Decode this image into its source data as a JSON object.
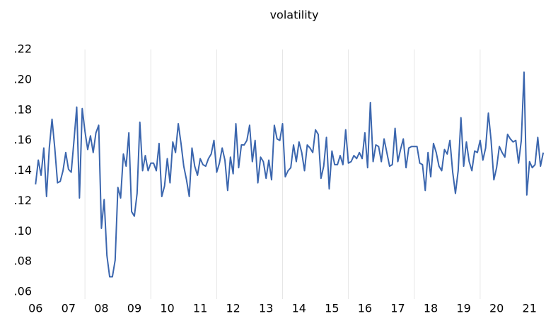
{
  "chart_data": {
    "type": "line",
    "title": "volatility",
    "color": "#3b66ae",
    "x": [
      2006.5,
      2006.583,
      2006.667,
      2006.75,
      2006.833,
      2006.917,
      2007.0,
      2007.083,
      2007.167,
      2007.25,
      2007.333,
      2007.417,
      2007.5,
      2007.583,
      2007.667,
      2007.75,
      2007.833,
      2007.917,
      2008.0,
      2008.083,
      2008.167,
      2008.25,
      2008.333,
      2008.417,
      2008.5,
      2008.583,
      2008.667,
      2008.75,
      2008.833,
      2008.917,
      2009.0,
      2009.083,
      2009.167,
      2009.25,
      2009.333,
      2009.417,
      2009.5,
      2009.583,
      2009.667,
      2009.75,
      2009.833,
      2009.917,
      2010.0,
      2010.083,
      2010.167,
      2010.25,
      2010.333,
      2010.417,
      2010.5,
      2010.583,
      2010.667,
      2010.75,
      2010.833,
      2010.917,
      2011.0,
      2011.083,
      2011.167,
      2011.25,
      2011.333,
      2011.417,
      2011.5,
      2011.583,
      2011.667,
      2011.75,
      2011.833,
      2011.917,
      2012.0,
      2012.083,
      2012.167,
      2012.25,
      2012.333,
      2012.417,
      2012.5,
      2012.583,
      2012.667,
      2012.75,
      2012.833,
      2012.917,
      2013.0,
      2013.083,
      2013.167,
      2013.25,
      2013.333,
      2013.417,
      2013.5,
      2013.583,
      2013.667,
      2013.75,
      2013.833,
      2013.917,
      2014.0,
      2014.083,
      2014.167,
      2014.25,
      2014.333,
      2014.417,
      2014.5,
      2014.583,
      2014.667,
      2014.75,
      2014.833,
      2014.917,
      2015.0,
      2015.083,
      2015.167,
      2015.25,
      2015.333,
      2015.417,
      2015.5,
      2015.583,
      2015.667,
      2015.75,
      2015.833,
      2015.917,
      2016.0,
      2016.083,
      2016.167,
      2016.25,
      2016.333,
      2016.417,
      2016.5,
      2016.583,
      2016.667,
      2016.75,
      2016.833,
      2016.917,
      2017.0,
      2017.083,
      2017.167,
      2017.25,
      2017.333,
      2017.417,
      2017.5,
      2017.583,
      2017.667,
      2017.75,
      2017.833,
      2017.917,
      2018.0,
      2018.083,
      2018.167,
      2018.25,
      2018.333,
      2018.417,
      2018.5,
      2018.583,
      2018.667,
      2018.75,
      2018.833,
      2018.917,
      2019.0,
      2019.083,
      2019.167,
      2019.25,
      2019.333,
      2019.417,
      2019.5,
      2019.583,
      2019.667,
      2019.75,
      2019.833,
      2019.917,
      2020.0,
      2020.083,
      2020.167,
      2020.25,
      2020.333,
      2020.417,
      2020.5,
      2020.583,
      2020.667,
      2020.75,
      2020.833,
      2020.917,
      2021.0,
      2021.083,
      2021.167,
      2021.25,
      2021.333,
      2021.417,
      2021.5,
      2021.583,
      2021.667,
      2021.75,
      2021.833,
      2021.917
    ],
    "values": [
      0.131,
      0.147,
      0.137,
      0.155,
      0.123,
      0.155,
      0.174,
      0.155,
      0.132,
      0.133,
      0.14,
      0.152,
      0.141,
      0.139,
      0.16,
      0.182,
      0.122,
      0.181,
      0.166,
      0.154,
      0.163,
      0.152,
      0.165,
      0.17,
      0.102,
      0.121,
      0.084,
      0.07,
      0.07,
      0.081,
      0.129,
      0.122,
      0.151,
      0.143,
      0.165,
      0.113,
      0.11,
      0.125,
      0.172,
      0.14,
      0.15,
      0.14,
      0.145,
      0.145,
      0.14,
      0.158,
      0.123,
      0.13,
      0.148,
      0.132,
      0.159,
      0.152,
      0.171,
      0.158,
      0.143,
      0.134,
      0.123,
      0.155,
      0.143,
      0.137,
      0.148,
      0.144,
      0.143,
      0.148,
      0.151,
      0.16,
      0.139,
      0.145,
      0.155,
      0.147,
      0.127,
      0.149,
      0.138,
      0.171,
      0.142,
      0.157,
      0.157,
      0.16,
      0.17,
      0.146,
      0.16,
      0.132,
      0.149,
      0.146,
      0.135,
      0.147,
      0.134,
      0.17,
      0.161,
      0.16,
      0.171,
      0.136,
      0.14,
      0.142,
      0.157,
      0.146,
      0.159,
      0.152,
      0.14,
      0.157,
      0.155,
      0.152,
      0.167,
      0.164,
      0.135,
      0.143,
      0.162,
      0.128,
      0.153,
      0.144,
      0.144,
      0.15,
      0.144,
      0.167,
      0.145,
      0.146,
      0.15,
      0.148,
      0.152,
      0.148,
      0.165,
      0.142,
      0.185,
      0.146,
      0.157,
      0.156,
      0.146,
      0.161,
      0.152,
      0.143,
      0.144,
      0.168,
      0.146,
      0.154,
      0.161,
      0.142,
      0.155,
      0.156,
      0.156,
      0.156,
      0.145,
      0.144,
      0.127,
      0.152,
      0.136,
      0.158,
      0.152,
      0.143,
      0.14,
      0.154,
      0.151,
      0.16,
      0.139,
      0.125,
      0.14,
      0.175,
      0.143,
      0.159,
      0.146,
      0.14,
      0.153,
      0.152,
      0.16,
      0.147,
      0.155,
      0.178,
      0.16,
      0.134,
      0.142,
      0.156,
      0.152,
      0.149,
      0.164,
      0.161,
      0.159,
      0.16,
      0.145,
      0.16,
      0.205,
      0.124,
      0.146,
      0.142,
      0.144,
      0.162,
      0.143,
      0.152
    ],
    "xlim": [
      2006,
      2022
    ],
    "xticks": [
      {
        "value": 2006,
        "label": "06"
      },
      {
        "value": 2007,
        "label": "07"
      },
      {
        "value": 2008,
        "label": "08"
      },
      {
        "value": 2009,
        "label": "09"
      },
      {
        "value": 2010,
        "label": "10"
      },
      {
        "value": 2011,
        "label": "11"
      },
      {
        "value": 2012,
        "label": "12"
      },
      {
        "value": 2013,
        "label": "13"
      },
      {
        "value": 2014,
        "label": "14"
      },
      {
        "value": 2015,
        "label": "15"
      },
      {
        "value": 2016,
        "label": "16"
      },
      {
        "value": 2017,
        "label": "17"
      },
      {
        "value": 2018,
        "label": "18"
      },
      {
        "value": 2019,
        "label": "19"
      },
      {
        "value": 2020,
        "label": "20"
      },
      {
        "value": 2021,
        "label": "21"
      }
    ],
    "ylim": [
      0.06,
      0.22
    ],
    "yticks": [
      {
        "value": 0.06,
        "label": ".06"
      },
      {
        "value": 0.08,
        "label": ".08"
      },
      {
        "value": 0.1,
        "label": ".10"
      },
      {
        "value": 0.12,
        "label": ".12"
      },
      {
        "value": 0.14,
        "label": ".14"
      },
      {
        "value": 0.16,
        "label": ".16"
      },
      {
        "value": 0.18,
        "label": ".18"
      },
      {
        "value": 0.2,
        "label": ".20"
      },
      {
        "value": 0.22,
        "label": ".22"
      }
    ]
  }
}
